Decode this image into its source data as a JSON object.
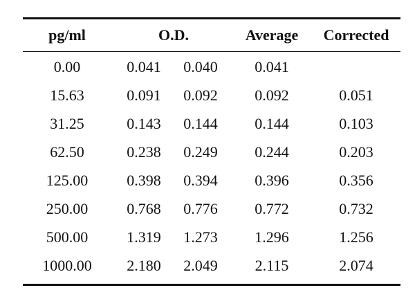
{
  "table": {
    "headers": {
      "pg": "pg/ml",
      "od": "O.D.",
      "average": "Average",
      "corrected": "Corrected"
    },
    "rows": [
      {
        "pg": "0.00",
        "od1": "0.041",
        "od2": "0.040",
        "average": "0.041",
        "corrected": ""
      },
      {
        "pg": "15.63",
        "od1": "0.091",
        "od2": "0.092",
        "average": "0.092",
        "corrected": "0.051"
      },
      {
        "pg": "31.25",
        "od1": "0.143",
        "od2": "0.144",
        "average": "0.144",
        "corrected": "0.103"
      },
      {
        "pg": "62.50",
        "od1": "0.238",
        "od2": "0.249",
        "average": "0.244",
        "corrected": "0.203"
      },
      {
        "pg": "125.00",
        "od1": "0.398",
        "od2": "0.394",
        "average": "0.396",
        "corrected": "0.356"
      },
      {
        "pg": "250.00",
        "od1": "0.768",
        "od2": "0.776",
        "average": "0.772",
        "corrected": "0.732"
      },
      {
        "pg": "500.00",
        "od1": "1.319",
        "od2": "1.273",
        "average": "1.296",
        "corrected": "1.256"
      },
      {
        "pg": "1000.00",
        "od1": "2.180",
        "od2": "2.049",
        "average": "2.115",
        "corrected": "2.074"
      }
    ]
  }
}
